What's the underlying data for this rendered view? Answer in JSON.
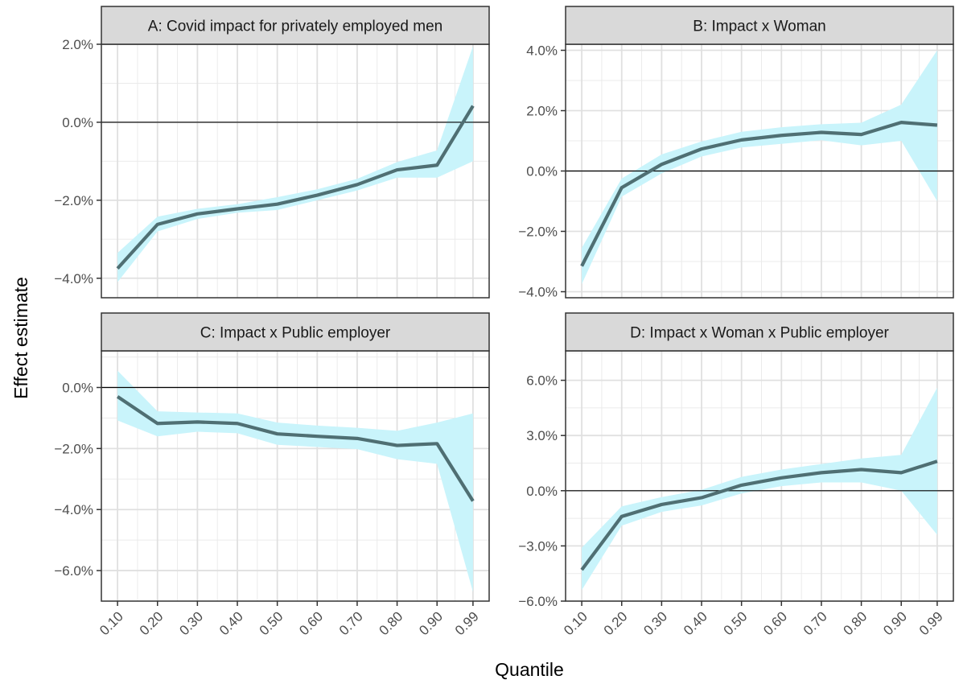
{
  "chart_data": {
    "type": "line",
    "layout": "facet-grid-2x2",
    "xlabel": "Quantile",
    "ylabel": "Effect estimate",
    "x": [
      0.1,
      0.2,
      0.3,
      0.4,
      0.5,
      0.6,
      0.7,
      0.8,
      0.9,
      0.99
    ],
    "x_tick_labels": [
      "0.10",
      "0.20",
      "0.30",
      "0.40",
      "0.50",
      "0.60",
      "0.70",
      "0.80",
      "0.90",
      "0.99"
    ],
    "grid": true,
    "line_color": "#4f6f73",
    "band_color": "#c9f4fb",
    "zero_line_color": "#000000",
    "strip_color": "#d9d9d9",
    "panels": [
      {
        "id": "A",
        "title": "A: Covid impact for privately employed men",
        "ylim": [
          -4.5,
          2.0
        ],
        "y_ticks": [
          -4,
          -2,
          0,
          2
        ],
        "y_tick_labels": [
          "−4.0%",
          "−2.0%",
          "0.0%",
          "2.0%"
        ],
        "estimate": [
          -3.75,
          -2.62,
          -2.35,
          -2.22,
          -2.1,
          -1.87,
          -1.6,
          -1.22,
          -1.1,
          0.42
        ],
        "lower": [
          -4.1,
          -2.8,
          -2.48,
          -2.32,
          -2.25,
          -2.0,
          -1.75,
          -1.42,
          -1.42,
          -1.0
        ],
        "upper": [
          -3.35,
          -2.42,
          -2.22,
          -2.1,
          -1.92,
          -1.72,
          -1.45,
          -1.02,
          -0.72,
          1.95
        ]
      },
      {
        "id": "B",
        "title": "B: Impact x Woman",
        "ylim": [
          -4.2,
          4.2
        ],
        "y_ticks": [
          -4,
          -2,
          0,
          2,
          4
        ],
        "y_tick_labels": [
          "−4.0%",
          "−2.0%",
          "0.0%",
          "2.0%",
          "4.0%"
        ],
        "estimate": [
          -3.15,
          -0.55,
          0.22,
          0.73,
          1.03,
          1.18,
          1.28,
          1.21,
          1.61,
          1.52
        ],
        "lower": [
          -3.75,
          -0.85,
          -0.08,
          0.48,
          0.78,
          0.9,
          1.02,
          0.85,
          1.0,
          -1.0
        ],
        "upper": [
          -2.55,
          -0.25,
          0.55,
          0.98,
          1.3,
          1.45,
          1.55,
          1.6,
          2.2,
          4.0
        ]
      },
      {
        "id": "C",
        "title": "C: Impact x Public employer",
        "ylim": [
          -7.0,
          1.2
        ],
        "y_ticks": [
          -6,
          -4,
          -2,
          0
        ],
        "y_tick_labels": [
          "−6.0%",
          "−4.0%",
          "−2.0%",
          "0.0%"
        ],
        "estimate": [
          -0.3,
          -1.18,
          -1.13,
          -1.18,
          -1.52,
          -1.6,
          -1.67,
          -1.9,
          -1.84,
          -3.72
        ],
        "lower": [
          -1.08,
          -1.6,
          -1.45,
          -1.5,
          -1.88,
          -1.95,
          -2.02,
          -2.35,
          -2.5,
          -6.7
        ],
        "upper": [
          0.55,
          -0.78,
          -0.82,
          -0.85,
          -1.15,
          -1.25,
          -1.32,
          -1.42,
          -1.15,
          -0.85
        ]
      },
      {
        "id": "D",
        "title": "D: Impact x Woman x Public employer",
        "ylim": [
          -6.0,
          7.6
        ],
        "y_ticks": [
          -6,
          -3,
          0,
          3,
          6
        ],
        "y_tick_labels": [
          "−6.0%",
          "−3.0%",
          "0.0%",
          "3.0%",
          "6.0%"
        ],
        "estimate": [
          -4.3,
          -1.4,
          -0.75,
          -0.38,
          0.3,
          0.7,
          0.98,
          1.15,
          0.98,
          1.6
        ],
        "lower": [
          -5.4,
          -1.9,
          -1.15,
          -0.8,
          -0.15,
          0.25,
          0.45,
          0.45,
          0.0,
          -2.4
        ],
        "upper": [
          -3.1,
          -0.85,
          -0.35,
          0.05,
          0.75,
          1.15,
          1.45,
          1.75,
          1.95,
          5.6
        ]
      }
    ]
  }
}
